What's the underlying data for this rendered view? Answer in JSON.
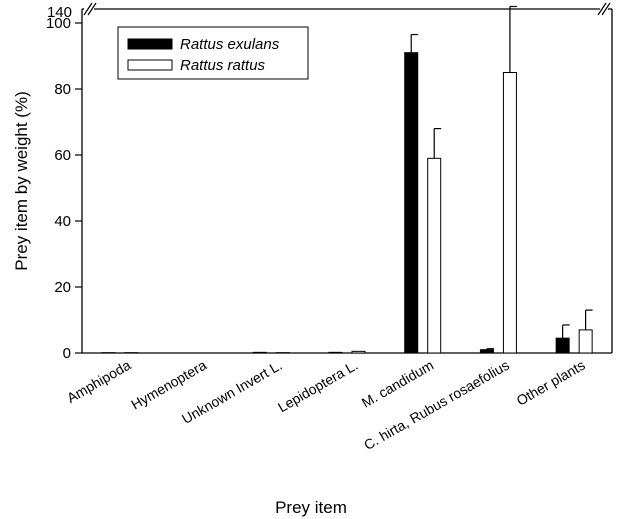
{
  "chart_data": {
    "type": "bar",
    "xlabel": "Prey item",
    "ylabel": "Prey item by weight (%)",
    "ylim": [
      0,
      100
    ],
    "y_ticks": [
      0,
      20,
      40,
      60,
      80,
      100
    ],
    "y_break_label": "140",
    "legend_position": "top-left",
    "categories": [
      "Amphipoda",
      "Hymenoptera",
      "Unknown Invert L.",
      "Lepidoptera L.",
      "M. candidum",
      "C. hirta, Rubus rosaefolius",
      "Other plants"
    ],
    "series": [
      {
        "name": "Rattus exulans",
        "color": "#000000",
        "values": [
          0.1,
          0.0,
          0.2,
          0.2,
          91,
          1.0,
          4.5
        ],
        "errors": [
          0.1,
          0.0,
          0.1,
          0.2,
          5.5,
          0.3,
          4.0
        ]
      },
      {
        "name": "Rattus rattus",
        "color": "#ffffff",
        "values": [
          0.1,
          0.0,
          0.1,
          0.5,
          59,
          85,
          7
        ],
        "errors": [
          0.1,
          0.0,
          0.1,
          0.2,
          9,
          20,
          6
        ]
      }
    ]
  }
}
